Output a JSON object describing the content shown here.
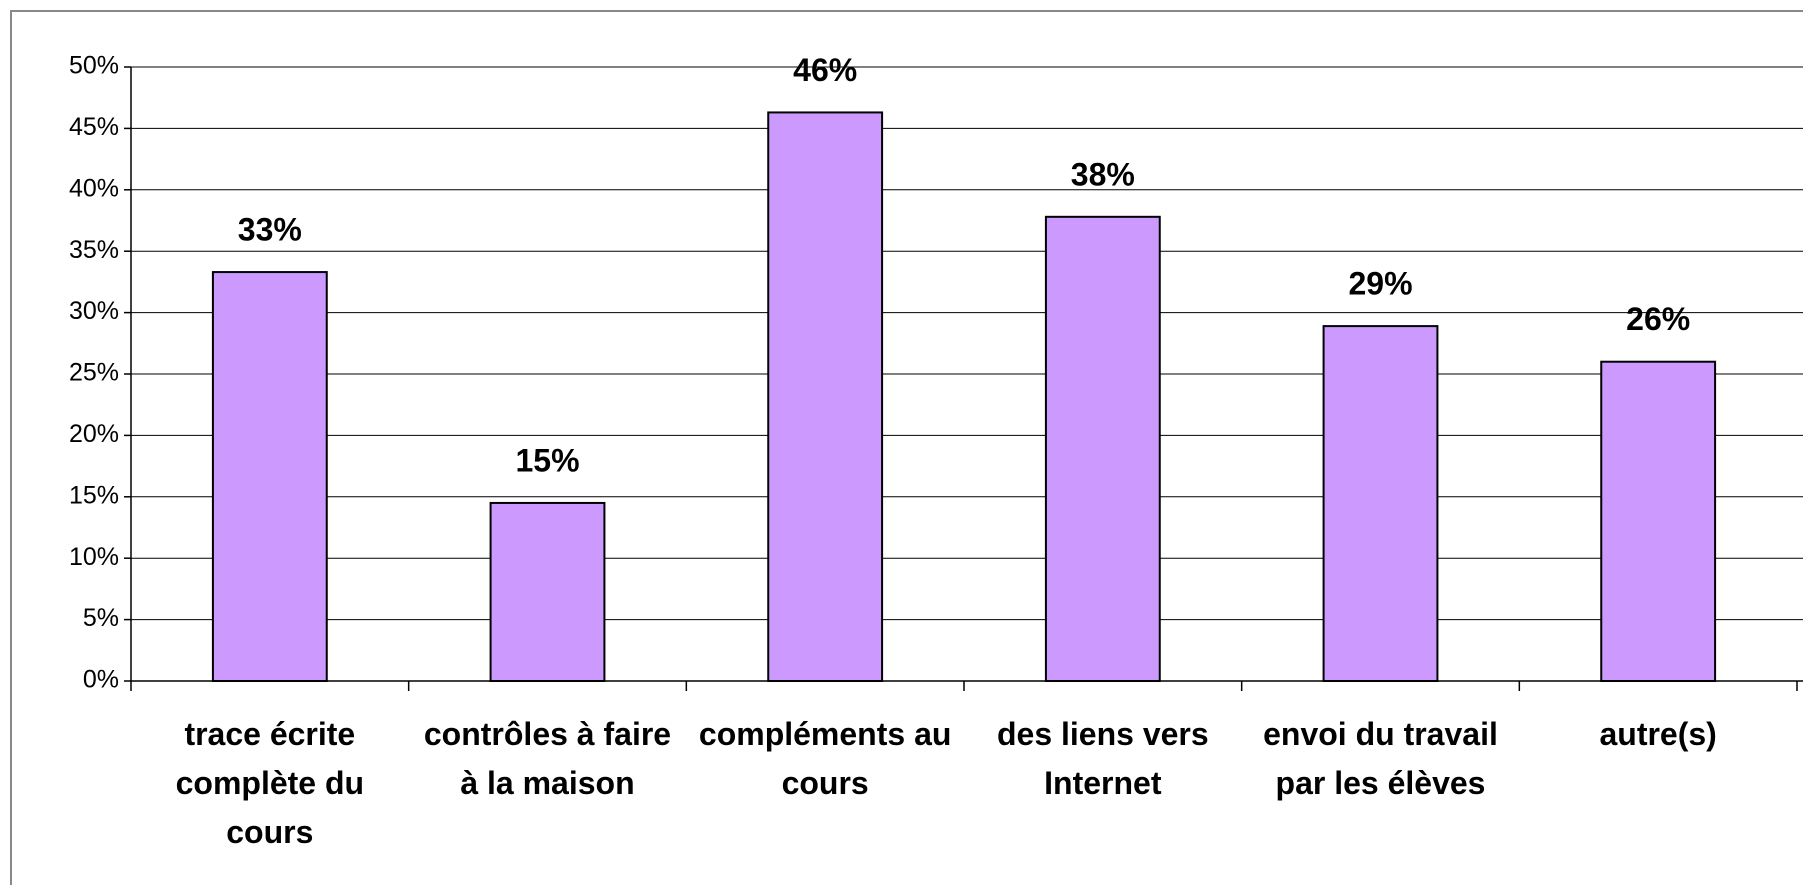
{
  "chart_data": {
    "type": "bar",
    "categories": [
      "trace écrite complète du cours",
      "contrôles à faire à la maison",
      "compléments au cours",
      "des liens vers Internet",
      "envoi du travail par les élèves",
      "autre(s)"
    ],
    "values": [
      33.3,
      14.5,
      46.3,
      37.8,
      28.9,
      26.0
    ],
    "value_labels": [
      "33%",
      "15%",
      "46%",
      "38%",
      "29%",
      "26%"
    ],
    "color": "#cc99ff",
    "ylim": [
      0,
      50
    ],
    "yticks": [
      {
        "value": 0,
        "label": "0%"
      },
      {
        "value": 5,
        "label": "5%"
      },
      {
        "value": 10,
        "label": "10%"
      },
      {
        "value": 15,
        "label": "15%"
      },
      {
        "value": 20,
        "label": "20%"
      },
      {
        "value": 25,
        "label": "25%"
      },
      {
        "value": 30,
        "label": "30%"
      },
      {
        "value": 35,
        "label": "35%"
      },
      {
        "value": 40,
        "label": "40%"
      },
      {
        "value": 45,
        "label": "45%"
      },
      {
        "value": 50,
        "label": "50%"
      }
    ],
    "grid": true
  }
}
